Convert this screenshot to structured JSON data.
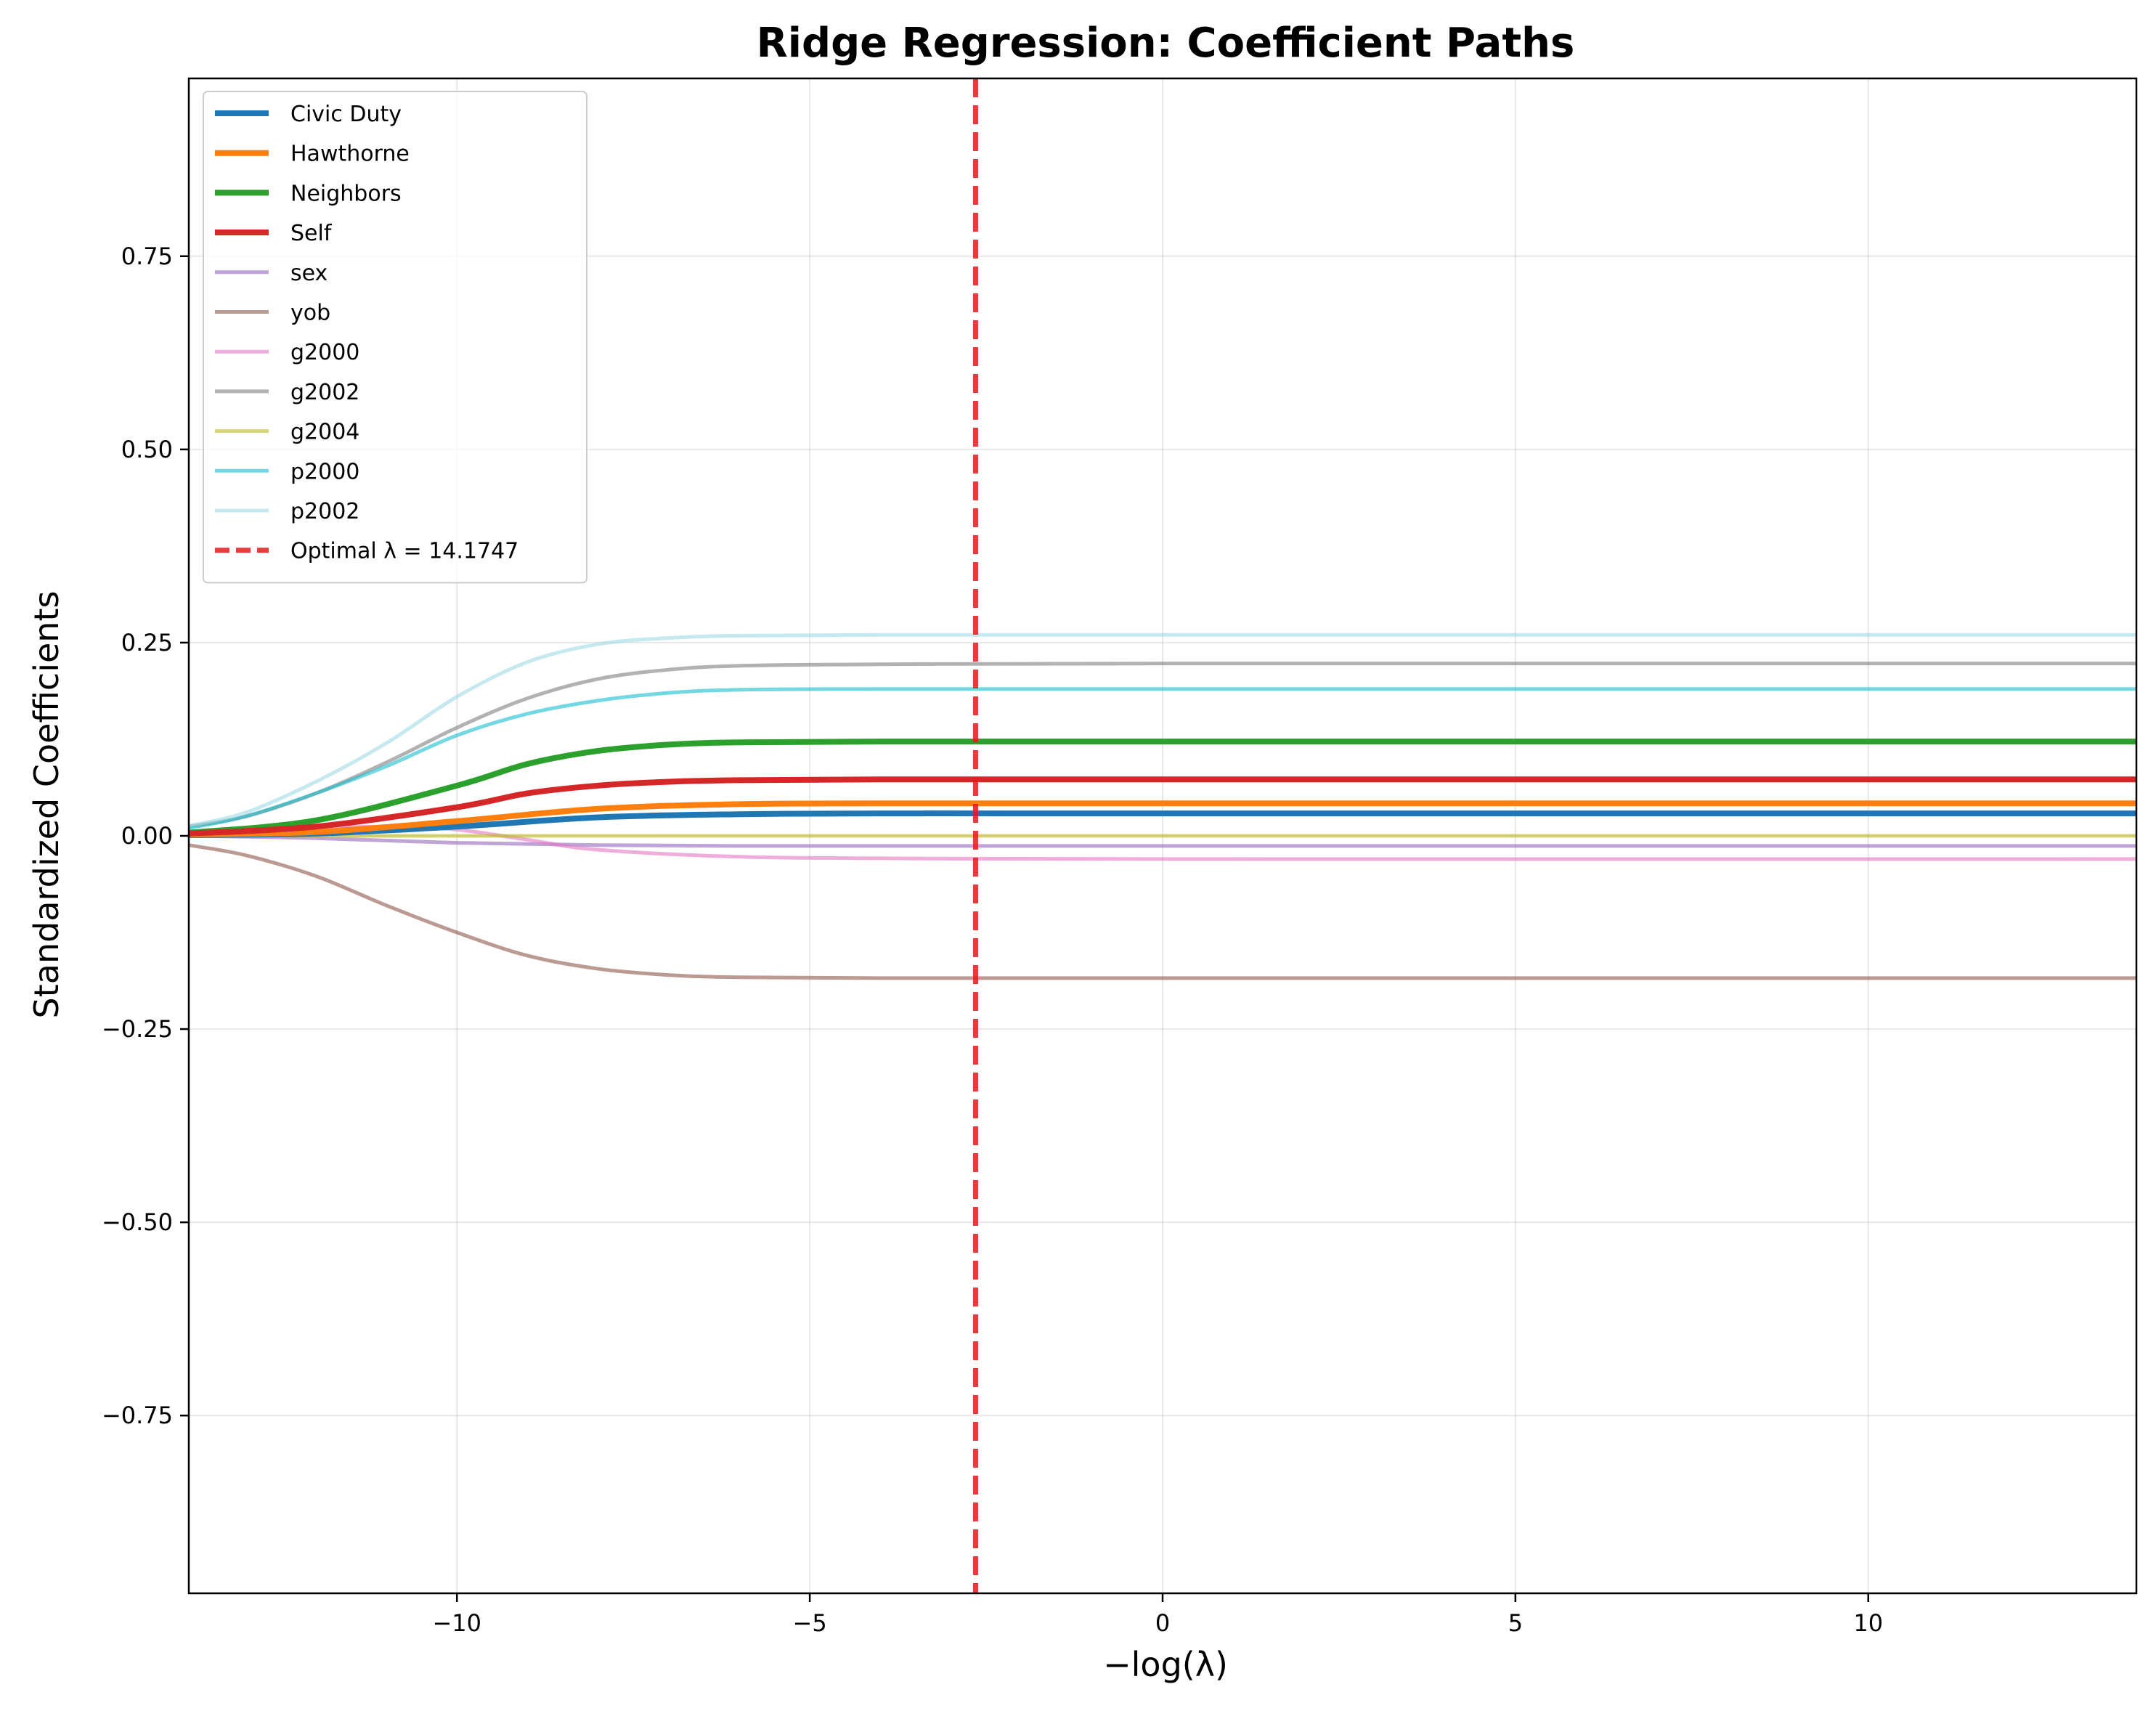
{
  "chart_data": {
    "type": "line",
    "title": "Ridge Regression: Coefficient Paths",
    "xlabel": "−log(λ)",
    "ylabel": "Standardized Coefficients",
    "xlim": [
      -13.8,
      13.8
    ],
    "ylim": [
      -0.98,
      0.98
    ],
    "x_ticks": [
      -10,
      -5,
      0,
      5,
      10
    ],
    "x_tick_labels": [
      "−10",
      "−5",
      "0",
      "5",
      "10"
    ],
    "y_ticks": [
      -0.75,
      -0.5,
      -0.25,
      0.0,
      0.25,
      0.5,
      0.75
    ],
    "y_tick_labels": [
      "−0.75",
      "−0.50",
      "−0.25",
      "0.00",
      "0.25",
      "0.50",
      "0.75"
    ],
    "grid": true,
    "legend_position": "upper left",
    "series": [
      {
        "name": "Civic Duty",
        "color": "#1f77b4",
        "width": "thick",
        "opacity": 1,
        "x": [
          -13.8,
          -12,
          -10,
          -8,
          -6,
          -4,
          0,
          13.8
        ],
        "values": [
          0.001,
          0.003,
          0.012,
          0.024,
          0.028,
          0.029,
          0.029,
          0.029
        ]
      },
      {
        "name": "Hawthorne",
        "color": "#ff7f0e",
        "width": "thick",
        "opacity": 1,
        "x": [
          -13.8,
          -12,
          -10,
          -8,
          -6,
          -4,
          0,
          13.8
        ],
        "values": [
          0.002,
          0.005,
          0.019,
          0.035,
          0.041,
          0.042,
          0.042,
          0.042
        ]
      },
      {
        "name": "Neighbors",
        "color": "#2ca02c",
        "width": "thick",
        "opacity": 1,
        "x": [
          -13.8,
          -12,
          -10,
          -9,
          -8,
          -7,
          -6,
          -4,
          0,
          13.8
        ],
        "values": [
          0.004,
          0.02,
          0.065,
          0.093,
          0.11,
          0.118,
          0.121,
          0.122,
          0.122,
          0.122
        ]
      },
      {
        "name": "Self",
        "color": "#d62728",
        "width": "thick",
        "opacity": 1,
        "x": [
          -13.8,
          -12,
          -10,
          -9,
          -8,
          -7,
          -6,
          -4,
          0,
          13.8
        ],
        "values": [
          0.003,
          0.012,
          0.037,
          0.055,
          0.065,
          0.07,
          0.072,
          0.073,
          0.073,
          0.073
        ]
      },
      {
        "name": "sex",
        "color": "#9467bd",
        "width": "thin",
        "opacity": 0.6,
        "x": [
          -13.8,
          -12,
          -10,
          -8,
          -6,
          -4,
          0,
          13.8
        ],
        "values": [
          0.0,
          -0.003,
          -0.009,
          -0.012,
          -0.013,
          -0.013,
          -0.013,
          -0.013
        ]
      },
      {
        "name": "yob",
        "color": "#8c564b",
        "width": "thin",
        "opacity": 0.6,
        "x": [
          -13.8,
          -13,
          -12,
          -11,
          -10,
          -9,
          -8,
          -7,
          -6,
          -4,
          0,
          13.8
        ],
        "values": [
          -0.012,
          -0.025,
          -0.052,
          -0.09,
          -0.125,
          -0.155,
          -0.172,
          -0.18,
          -0.183,
          -0.184,
          -0.184,
          -0.184
        ]
      },
      {
        "name": "g2000",
        "color": "#e377c2",
        "width": "thin",
        "opacity": 0.6,
        "x": [
          -13.8,
          -12,
          -11,
          -10,
          -9,
          -8,
          -6,
          -4,
          0,
          13.8
        ],
        "values": [
          0.005,
          0.01,
          0.012,
          0.008,
          -0.005,
          -0.018,
          -0.027,
          -0.029,
          -0.03,
          -0.03
        ]
      },
      {
        "name": "g2002",
        "color": "#7f7f7f",
        "width": "thin",
        "opacity": 0.6,
        "x": [
          -13.8,
          -13,
          -12,
          -11,
          -10,
          -9,
          -8,
          -7,
          -6,
          -4,
          0,
          13.8
        ],
        "values": [
          0.012,
          0.025,
          0.055,
          0.095,
          0.14,
          0.178,
          0.203,
          0.215,
          0.22,
          0.222,
          0.223,
          0.223
        ]
      },
      {
        "name": "g2004",
        "color": "#bcbd22",
        "width": "thin",
        "opacity": 0.6,
        "x": [
          -13.8,
          -10,
          -6,
          0,
          13.8
        ],
        "values": [
          0.0,
          0.0,
          0.0,
          0.0,
          0.0
        ]
      },
      {
        "name": "p2000",
        "color": "#17becf",
        "width": "thin",
        "opacity": 0.6,
        "x": [
          -13.8,
          -13,
          -12,
          -11,
          -10,
          -9,
          -8,
          -7,
          -6,
          -4,
          0,
          13.8
        ],
        "values": [
          0.01,
          0.025,
          0.055,
          0.09,
          0.13,
          0.158,
          0.175,
          0.185,
          0.189,
          0.19,
          0.19,
          0.19
        ]
      },
      {
        "name": "p2002",
        "color": "#9edae5",
        "width": "thin",
        "opacity": 0.6,
        "x": [
          -13.8,
          -13,
          -12,
          -11,
          -10,
          -9,
          -8,
          -7,
          -6,
          -4,
          0,
          13.8
        ],
        "values": [
          0.013,
          0.03,
          0.07,
          0.12,
          0.18,
          0.225,
          0.248,
          0.256,
          0.259,
          0.26,
          0.26,
          0.26
        ]
      }
    ],
    "reference_line": {
      "label": "Optimal λ = 14.1747",
      "x": -2.65,
      "color": "#e31a1c",
      "style": "dashed"
    }
  }
}
